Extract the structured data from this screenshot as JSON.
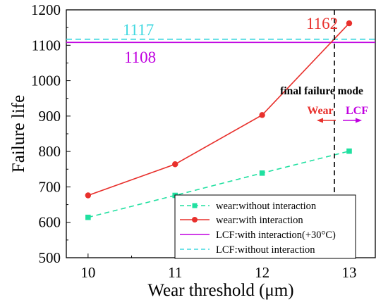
{
  "chart_data": {
    "type": "line",
    "xlabel": "Wear threshold (μm)",
    "ylabel": "Failure life",
    "xlim": [
      9.75,
      13.3
    ],
    "ylim": [
      500,
      1200
    ],
    "x_ticks": [
      "10",
      "11",
      "12",
      "13"
    ],
    "y_ticks": [
      "500",
      "600",
      "700",
      "800",
      "900",
      "1000",
      "1100",
      "1200"
    ],
    "categories": [
      10,
      11,
      12,
      13
    ],
    "series": [
      {
        "name": "wear:without interaction",
        "values": [
          614,
          676,
          739,
          801
        ],
        "color": "#20e0a0",
        "style": "dashed",
        "marker": "square"
      },
      {
        "name": "wear:with interaction",
        "values": [
          676,
          764,
          903,
          1162
        ],
        "color": "#e8302c",
        "style": "solid",
        "marker": "circle"
      }
    ],
    "hlines": [
      {
        "name": "LCF:with interaction(+30°C)",
        "value": 1108,
        "color": "#c000e0",
        "style": "solid"
      },
      {
        "name": "LCF:without interaction",
        "value": 1117,
        "color": "#40d8e0",
        "style": "dashed"
      }
    ],
    "annotations": {
      "lcf_without_value": "1117",
      "lcf_with_value": "1108",
      "wear_with_end_value": "1162",
      "final_failure_title": "final failure mode",
      "wear_label": "Wear",
      "lcf_label": "LCF"
    },
    "final_failure_x": 12.83,
    "legend": {
      "placement": "bottom-right",
      "entries": [
        "wear:without interaction",
        "wear:with interaction",
        "LCF:with interaction(+30°C)",
        "LCF:without interaction"
      ]
    },
    "colors": {
      "wear_without": "#20e0a0",
      "wear_with": "#e8302c",
      "lcf_with": "#c000e0",
      "lcf_without": "#40d8e0",
      "wear_arrow": "#e8302c",
      "lcf_arrow": "#c000e0"
    },
    "grid": false
  }
}
